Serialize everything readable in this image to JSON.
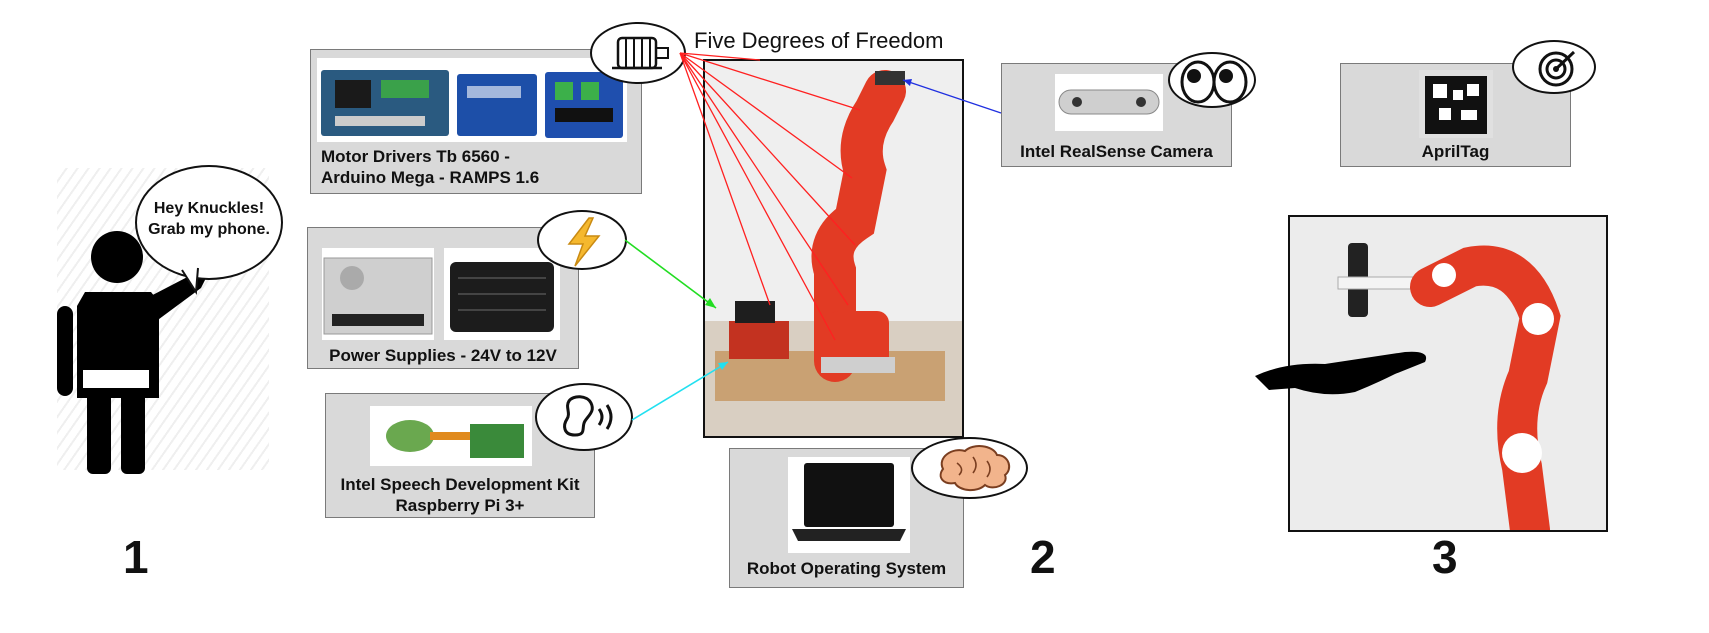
{
  "speech_bubble": {
    "line1": "Hey Knuckles!",
    "line2": "Grab my phone."
  },
  "title_dof": "Five Degrees of Freedom",
  "cards": {
    "motor": {
      "line1": "Motor Drivers Tb 6560 -",
      "line2": "Arduino Mega - RAMPS 1.6"
    },
    "power": {
      "label": "Power Supplies - 24V to 12V"
    },
    "speech": {
      "line1": "Intel Speech Development Kit",
      "line2": "Raspberry Pi 3+"
    },
    "ros": {
      "label": "Robot Operating System"
    },
    "camera": {
      "label": "Intel RealSense Camera"
    },
    "apriltag": {
      "label": "AprilTag"
    }
  },
  "steps": {
    "one": "1",
    "two": "2",
    "three": "3"
  },
  "icons": {
    "motor": "motor-icon",
    "power": "lightning-icon",
    "speech": "ear-sound-icon",
    "ros": "brain-icon",
    "camera": "eyes-icon",
    "apriltag": "target-icon"
  },
  "colors": {
    "card_bg": "#d9d9d9",
    "robot_red": "#e23b24",
    "connector_motor": "#ff2020",
    "connector_power": "#22dd22",
    "connector_speech": "#22e0f0",
    "connector_camera": "#2030e0"
  }
}
